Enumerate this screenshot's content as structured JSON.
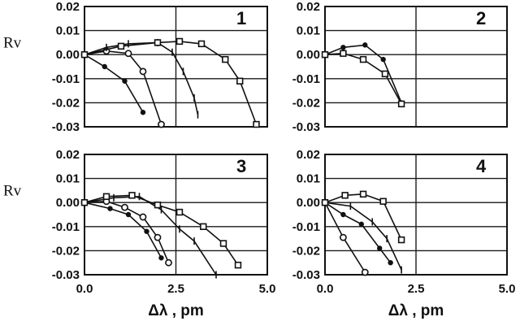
{
  "chart_data": [
    {
      "type": "line",
      "panel_label": "1",
      "ylabel": "Rv",
      "xlabel": "",
      "xlim": [
        0,
        5
      ],
      "ylim": [
        -0.03,
        0.02
      ],
      "x_ticks": [],
      "y_ticks": [
        "0.02",
        "0.01",
        "0.00",
        "-0.01",
        "-0.02",
        "-0.03"
      ],
      "series": [
        {
          "marker": "dot",
          "points": [
            [
              0,
              0
            ],
            [
              0.55,
              -0.005
            ],
            [
              1.1,
              -0.011
            ],
            [
              1.6,
              -0.024
            ]
          ]
        },
        {
          "marker": "circle",
          "points": [
            [
              0,
              0
            ],
            [
              0.6,
              0.0015
            ],
            [
              1.2,
              0.0005
            ],
            [
              1.6,
              -0.007
            ],
            [
              2.1,
              -0.029
            ]
          ]
        },
        {
          "marker": "tick",
          "points": [
            [
              0,
              0
            ],
            [
              0.6,
              0.003
            ],
            [
              1.2,
              0.0045
            ],
            [
              2.0,
              0.005
            ],
            [
              2.4,
              0.001
            ],
            [
              2.7,
              -0.007
            ],
            [
              3.0,
              -0.018
            ],
            [
              3.1,
              -0.025
            ]
          ]
        },
        {
          "marker": "square",
          "points": [
            [
              0,
              0
            ],
            [
              1.0,
              0.0035
            ],
            [
              2.0,
              0.005
            ],
            [
              2.6,
              0.0055
            ],
            [
              3.2,
              0.0045
            ],
            [
              3.85,
              -0.002
            ],
            [
              4.25,
              -0.011
            ],
            [
              4.7,
              -0.029
            ]
          ]
        }
      ]
    },
    {
      "type": "line",
      "panel_label": "2",
      "ylabel": "",
      "xlabel": "",
      "xlim": [
        0,
        5
      ],
      "ylim": [
        -0.03,
        0.02
      ],
      "x_ticks": [],
      "y_ticks": [
        "0.02",
        "0.01",
        "0.00",
        "-0.01",
        "-0.02",
        "-0.03"
      ],
      "series": [
        {
          "marker": "dot",
          "points": [
            [
              0,
              0
            ],
            [
              0.5,
              0.003
            ],
            [
              1.1,
              0.004
            ],
            [
              1.6,
              -0.002
            ],
            [
              2.1,
              -0.02
            ]
          ]
        },
        {
          "marker": "square",
          "points": [
            [
              0,
              0
            ],
            [
              0.5,
              0.0005
            ],
            [
              1.05,
              -0.002
            ],
            [
              1.65,
              -0.008
            ],
            [
              2.1,
              -0.0205
            ]
          ]
        }
      ]
    },
    {
      "type": "line",
      "panel_label": "3",
      "ylabel": "Rv",
      "xlabel": "Δλ , pm",
      "xlim": [
        0,
        5
      ],
      "ylim": [
        -0.03,
        0.02
      ],
      "x_ticks": [
        "0.0",
        "2.5",
        "5.0"
      ],
      "y_ticks": [
        "0.02",
        "0.01",
        "0.00",
        "-0.01",
        "-0.02",
        "-0.03"
      ],
      "series": [
        {
          "marker": "dot",
          "points": [
            [
              0,
              0
            ],
            [
              0.7,
              -0.0025
            ],
            [
              1.2,
              -0.005
            ],
            [
              1.7,
              -0.012
            ],
            [
              2.1,
              -0.023
            ]
          ]
        },
        {
          "marker": "circle",
          "points": [
            [
              0,
              0
            ],
            [
              0.6,
              0.0005
            ],
            [
              1.1,
              -0.002
            ],
            [
              1.6,
              -0.006
            ],
            [
              2.0,
              -0.0145
            ],
            [
              2.3,
              -0.025
            ]
          ]
        },
        {
          "marker": "tick",
          "points": [
            [
              0,
              0
            ],
            [
              0.8,
              0.002
            ],
            [
              1.5,
              0.0025
            ],
            [
              2.1,
              -0.003
            ],
            [
              2.6,
              -0.011
            ],
            [
              3.0,
              -0.016
            ],
            [
              3.6,
              -0.03
            ]
          ]
        },
        {
          "marker": "square",
          "points": [
            [
              0,
              0
            ],
            [
              0.6,
              0.0025
            ],
            [
              1.3,
              0.003
            ],
            [
              2.0,
              -0.001
            ],
            [
              2.6,
              -0.004
            ],
            [
              3.25,
              -0.01
            ],
            [
              3.8,
              -0.017
            ],
            [
              4.2,
              -0.026
            ]
          ]
        }
      ]
    },
    {
      "type": "line",
      "panel_label": "4",
      "ylabel": "",
      "xlabel": "Δλ , pm",
      "xlim": [
        0,
        5
      ],
      "ylim": [
        -0.03,
        0.02
      ],
      "x_ticks": [
        "0.0",
        "2.5",
        "5.0"
      ],
      "y_ticks": [
        "0.02",
        "0.01",
        "0.00",
        "-0.01",
        "-0.02",
        "-0.03"
      ],
      "series": [
        {
          "marker": "circle",
          "points": [
            [
              0,
              0
            ],
            [
              0.5,
              -0.0145
            ],
            [
              1.1,
              -0.029
            ]
          ]
        },
        {
          "marker": "dot",
          "points": [
            [
              0,
              0
            ],
            [
              0.5,
              -0.005
            ],
            [
              1.0,
              -0.009
            ],
            [
              1.5,
              -0.019
            ],
            [
              1.8,
              -0.025
            ]
          ]
        },
        {
          "marker": "tick",
          "points": [
            [
              0,
              0
            ],
            [
              0.7,
              -0.0015
            ],
            [
              1.3,
              -0.008
            ],
            [
              1.7,
              -0.015
            ],
            [
              2.1,
              -0.028
            ]
          ]
        },
        {
          "marker": "square",
          "points": [
            [
              0,
              0
            ],
            [
              0.55,
              0.003
            ],
            [
              1.05,
              0.0035
            ],
            [
              1.6,
              0.0005
            ],
            [
              2.1,
              -0.0155
            ]
          ]
        }
      ]
    }
  ]
}
